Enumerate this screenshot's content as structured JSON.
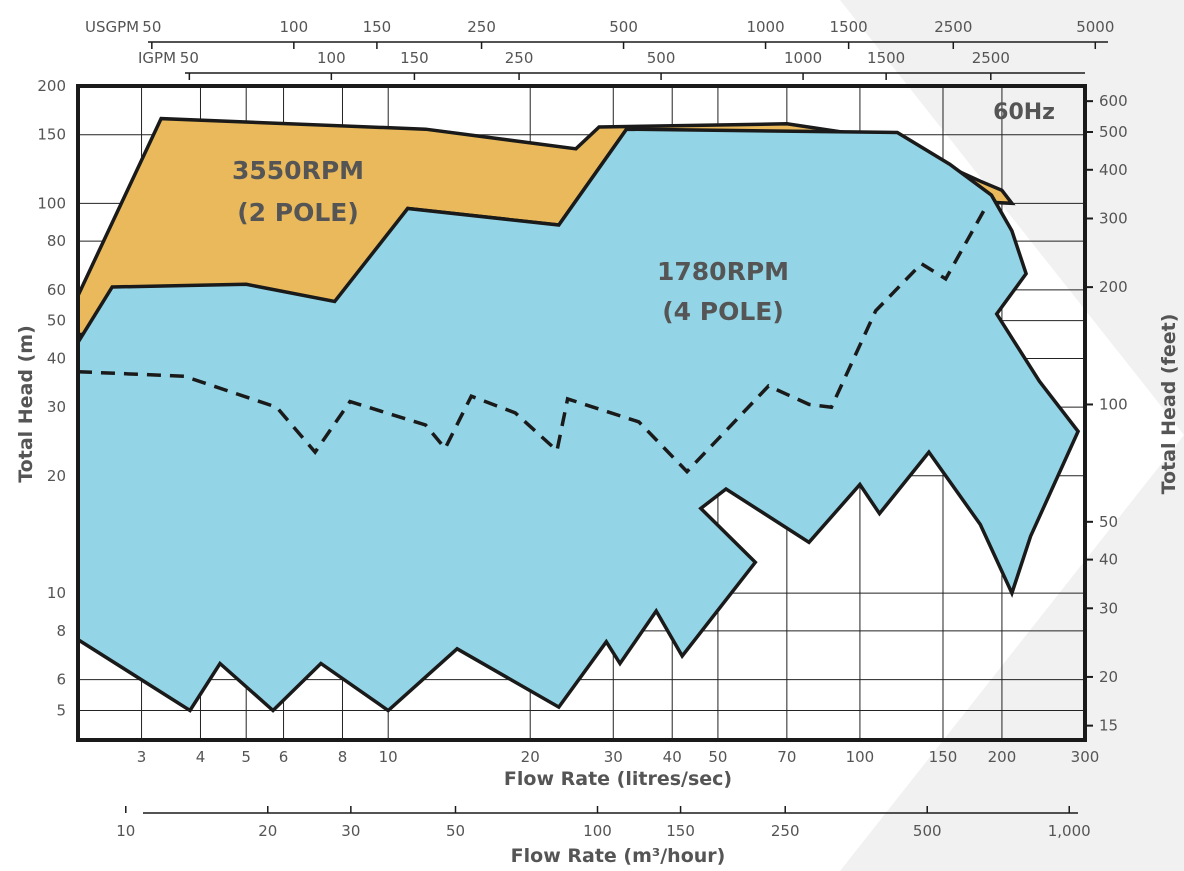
{
  "chart_data": {
    "type": "area",
    "title": "60Hz",
    "xlabel": "Flow Rate (litres/sec)",
    "ylabel": "Total Head (m)",
    "ylabel_right": "Total Head (feet)",
    "xlabel_m3": "Flow Rate (m³/hour)",
    "x_scale": "log",
    "y_scale": "log",
    "xlim": [
      2.2,
      300
    ],
    "ylim": [
      4.2,
      200
    ],
    "grid": true,
    "x_ticks": [
      3,
      4,
      5,
      6,
      8,
      10,
      20,
      30,
      40,
      50,
      70,
      100,
      150,
      200,
      300
    ],
    "y_ticks": [
      5,
      6,
      8,
      10,
      20,
      30,
      40,
      50,
      60,
      80,
      100,
      150,
      200
    ],
    "y_ticks_feet": [
      15,
      20,
      30,
      40,
      50,
      100,
      200,
      300,
      400,
      500,
      600
    ],
    "top_axis_usgpm": {
      "label": "USGPM",
      "ticks": [
        "50",
        "100",
        "150",
        "250",
        "500",
        "1000",
        "1500",
        "2500",
        "5000"
      ]
    },
    "top_axis_igpm": {
      "label": "IGPM",
      "ticks": [
        "50",
        "100",
        "150",
        "250",
        "500",
        "1000",
        "1500",
        "2500"
      ]
    },
    "bottom_axis_m3h": {
      "ticks": [
        "10",
        "20",
        "30",
        "50",
        "100",
        "150",
        "250",
        "500",
        "1,000"
      ]
    },
    "series": [
      {
        "name": "3550RPM (2 POLE)",
        "label_line1": "3550RPM",
        "label_line2": "(2 POLE)",
        "color": "#e9b95b",
        "points": [
          [
            2.2,
            58
          ],
          [
            3.3,
            165
          ],
          [
            12,
            155
          ],
          [
            25,
            138
          ],
          [
            28,
            157
          ],
          [
            70,
            160
          ],
          [
            100,
            150
          ],
          [
            150,
            126
          ],
          [
            180,
            114
          ],
          [
            200,
            108
          ],
          [
            210,
            100
          ],
          [
            120,
            103
          ],
          [
            32,
            155
          ],
          [
            23,
            88
          ],
          [
            11,
            97
          ],
          [
            7.8,
            56
          ],
          [
            2.2,
            46
          ]
        ]
      },
      {
        "name": "1780RPM (4 POLE)",
        "label_line1": "1780RPM",
        "label_line2": "(4 POLE)",
        "color": "#93d5e6",
        "points": [
          [
            2.2,
            44
          ],
          [
            2.6,
            61
          ],
          [
            5,
            62
          ],
          [
            7.7,
            56
          ],
          [
            11,
            97
          ],
          [
            23,
            88
          ],
          [
            32,
            155
          ],
          [
            120,
            152
          ],
          [
            155,
            126
          ],
          [
            190,
            105
          ],
          [
            210,
            85
          ],
          [
            225,
            66
          ],
          [
            195,
            52
          ],
          [
            240,
            35
          ],
          [
            290,
            26
          ],
          [
            230,
            14
          ],
          [
            210,
            10
          ],
          [
            180,
            15
          ],
          [
            140,
            23
          ],
          [
            110,
            16
          ],
          [
            100,
            19
          ],
          [
            78,
            13.5
          ],
          [
            52,
            18.5
          ],
          [
            46,
            16.5
          ],
          [
            60,
            12
          ],
          [
            42,
            6.9
          ],
          [
            37,
            9
          ],
          [
            31,
            6.6
          ],
          [
            29,
            7.5
          ],
          [
            23,
            5.1
          ],
          [
            14,
            7.2
          ],
          [
            10,
            5
          ],
          [
            7.2,
            6.6
          ],
          [
            5.7,
            5
          ],
          [
            4.4,
            6.6
          ],
          [
            3.8,
            5
          ],
          [
            2.2,
            7.6
          ]
        ]
      }
    ],
    "dashed_series": {
      "points": [
        [
          2.2,
          37
        ],
        [
          3.7,
          36
        ],
        [
          5.8,
          30
        ],
        [
          7,
          23
        ],
        [
          8.3,
          31
        ],
        [
          12,
          27
        ],
        [
          13.2,
          23.5
        ],
        [
          15,
          32
        ],
        [
          18.6,
          29
        ],
        [
          22.8,
          23.2
        ],
        [
          24,
          31.5
        ],
        [
          34,
          27.5
        ],
        [
          43,
          20.5
        ],
        [
          64,
          34
        ],
        [
          78,
          30.5
        ],
        [
          87,
          30
        ],
        [
          108,
          53
        ],
        [
          135,
          70
        ],
        [
          152,
          64
        ],
        [
          185,
          98
        ]
      ]
    }
  }
}
